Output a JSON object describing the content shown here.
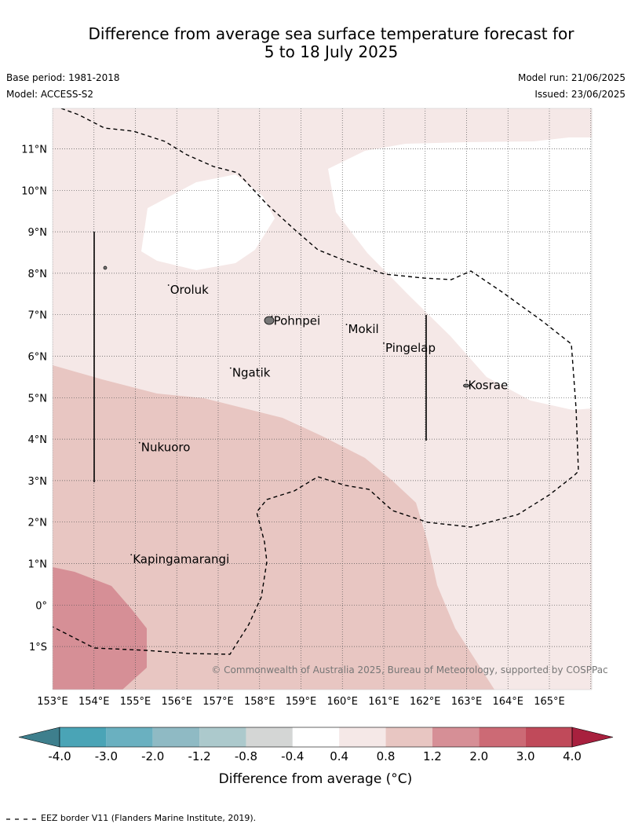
{
  "header": {
    "title_line1": "Difference from average sea surface temperature forecast for",
    "title_line2": "5 to 18 July 2025",
    "base_period": "Base period: 1981-2018",
    "model": "Model: ACCESS-S2",
    "model_run": "Model run: 21/06/2025",
    "issued": "Issued: 23/06/2025"
  },
  "map": {
    "lat_labels": [
      "11°N",
      "10°N",
      "9°N",
      "8°N",
      "7°N",
      "6°N",
      "5°N",
      "4°N",
      "3°N",
      "2°N",
      "1°N",
      "0°",
      "1°S"
    ],
    "lon_labels": [
      "153°E",
      "154°E",
      "155°E",
      "156°E",
      "157°E",
      "158°E",
      "159°E",
      "160°E",
      "161°E",
      "162°E",
      "163°E",
      "164°E",
      "165°E"
    ],
    "places": [
      {
        "name": "Oroluk",
        "lon": 155.8,
        "lat": 7.6
      },
      {
        "name": "Pohnpei",
        "lon": 158.3,
        "lat": 6.85
      },
      {
        "name": "Mokil",
        "lon": 160.1,
        "lat": 6.65
      },
      {
        "name": "Pingelap",
        "lon": 161.0,
        "lat": 6.2
      },
      {
        "name": "Ngatik",
        "lon": 157.3,
        "lat": 5.6
      },
      {
        "name": "Kosrae",
        "lon": 163.0,
        "lat": 5.3
      },
      {
        "name": "Nukuoro",
        "lon": 155.1,
        "lat": 3.8
      },
      {
        "name": "Kapingamarangi",
        "lon": 154.9,
        "lat": 1.1
      }
    ],
    "copyright": "© Commonwealth of Australia 2025, Bureau of Meteorology, supported by COSPPac"
  },
  "colorbar": {
    "ticks": [
      "-4.0",
      "-3.0",
      "-2.0",
      "-1.2",
      "-0.8",
      "-0.4",
      "0.4",
      "0.8",
      "1.2",
      "2.0",
      "3.0",
      "4.0"
    ],
    "colors": [
      "#3e7f8d",
      "#4aa4b6",
      "#6ab0c0",
      "#8fbac4",
      "#acc9cc",
      "#d4d6d5",
      "#ffffff",
      "#f5e8e7",
      "#e8c6c2",
      "#d68f96",
      "#cc6a75",
      "#c04a5a",
      "#a8203e"
    ],
    "label": "Difference from average (°C)"
  },
  "footer": {
    "eez_note": "EEZ border V11 (Flanders Marine Institute, 2019)."
  }
}
